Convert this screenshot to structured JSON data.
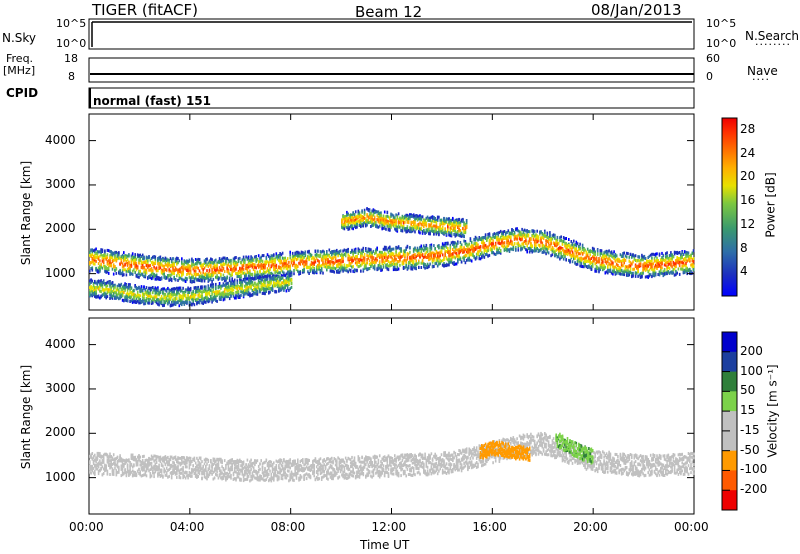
{
  "header": {
    "station": "TIGER (fitACF)",
    "beam": "Beam 12",
    "date": "08/Jan/2013"
  },
  "top_panels": {
    "nsky_label": "N.Sky",
    "nsky_ticks": [
      "10^5",
      "10^0"
    ],
    "nsearch_label": "N.Search",
    "nsearch_ticks": [
      "10^5",
      "10^0"
    ],
    "freq_label": "Freq.",
    "freq_unit": "[MHz]",
    "freq_ticks": [
      "18",
      "8"
    ],
    "nave_label": "Nave",
    "nave_ticks": [
      "60",
      "0"
    ],
    "cpid_label": "CPID",
    "cpid_value": "normal (fast) 151"
  },
  "colors": {
    "power": [
      "#0000ff",
      "#1c2fbf",
      "#2e6fa8",
      "#3a9a6e",
      "#7cc840",
      "#e8e000",
      "#ffb000",
      "#ff7000",
      "#ff3000",
      "#ee0000"
    ],
    "velocity": [
      "#ee0000",
      "#ff5a00",
      "#ff9a00",
      "#c0c0c0",
      "#c0c0c0",
      "#7cd24a",
      "#2f7f3a",
      "#1c3f9f",
      "#0000cc"
    ]
  },
  "chart_data": [
    {
      "type": "heatmap",
      "title": "",
      "xlabel": "",
      "ylabel": "Slant Range [km]",
      "x_ticks": [
        "00:00",
        "04:00",
        "08:00",
        "12:00",
        "16:00",
        "20:00",
        "00:00"
      ],
      "x_range_hours": [
        0,
        24
      ],
      "y_ticks": [
        1000,
        2000,
        3000,
        4000
      ],
      "ylim": [
        180,
        4600
      ],
      "colorbar": {
        "label": "Power [dB]",
        "ticks": [
          4,
          8,
          12,
          16,
          20,
          24,
          28
        ],
        "range": [
          0,
          30
        ]
      },
      "series": [
        {
          "x": [
            0,
            1,
            2,
            3,
            4,
            5,
            6,
            7,
            8,
            9,
            10,
            11,
            12,
            13,
            14,
            15,
            16,
            17,
            18,
            19,
            20,
            21,
            22,
            23,
            24
          ],
          "y": [
            1350,
            1280,
            1200,
            1150,
            1100,
            1120,
            1150,
            1200,
            1260,
            1300,
            1320,
            1350,
            1380,
            1400,
            1450,
            1550,
            1700,
            1800,
            1750,
            1550,
            1350,
            1250,
            1200,
            1250,
            1300
          ],
          "value": 24
        },
        {
          "x": [
            0,
            1,
            2,
            3,
            4,
            5,
            6,
            7,
            8
          ],
          "y": [
            700,
            650,
            550,
            500,
            520,
            600,
            700,
            780,
            850
          ],
          "value": 16
        },
        {
          "x": [
            10,
            11,
            12,
            13,
            14,
            15
          ],
          "y": [
            2200,
            2300,
            2200,
            2150,
            2100,
            2050
          ],
          "value": 22
        }
      ]
    },
    {
      "type": "heatmap",
      "title": "",
      "xlabel": "Time UT",
      "ylabel": "Slant Range [km]",
      "x_ticks": [
        "00:00",
        "04:00",
        "08:00",
        "12:00",
        "16:00",
        "20:00",
        "00:00"
      ],
      "x_range_hours": [
        0,
        24
      ],
      "y_ticks": [
        1000,
        2000,
        3000,
        4000
      ],
      "ylim": [
        180,
        4600
      ],
      "colorbar": {
        "label": "Velocity [m s⁻¹]",
        "ticks": [
          -200,
          -100,
          -50,
          -15,
          15,
          50,
          100,
          200
        ],
        "tick_labels": [
          "200",
          "100",
          "50",
          "15",
          "-15",
          "-50",
          "-100",
          "-200"
        ]
      },
      "series": [
        {
          "name": "",
          "x": [
            0,
            2,
            4,
            6,
            8,
            10,
            12,
            14,
            15,
            16,
            17,
            18,
            19,
            20,
            22,
            24
          ],
          "y": [
            1350,
            1300,
            1250,
            1200,
            1200,
            1250,
            1300,
            1350,
            1450,
            1600,
            1750,
            1800,
            1600,
            1400,
            1300,
            1350
          ],
          "value": 0
        },
        {
          "name": "",
          "x": [
            15.5,
            16,
            16.5,
            17,
            17.5
          ],
          "y": [
            1600,
            1700,
            1650,
            1600,
            1550
          ],
          "value": -80
        },
        {
          "name": "",
          "x": [
            18.5,
            19,
            19.5,
            20
          ],
          "y": [
            1900,
            1750,
            1600,
            1500
          ],
          "value": 40
        }
      ]
    }
  ],
  "x_axis_title": "Time UT"
}
